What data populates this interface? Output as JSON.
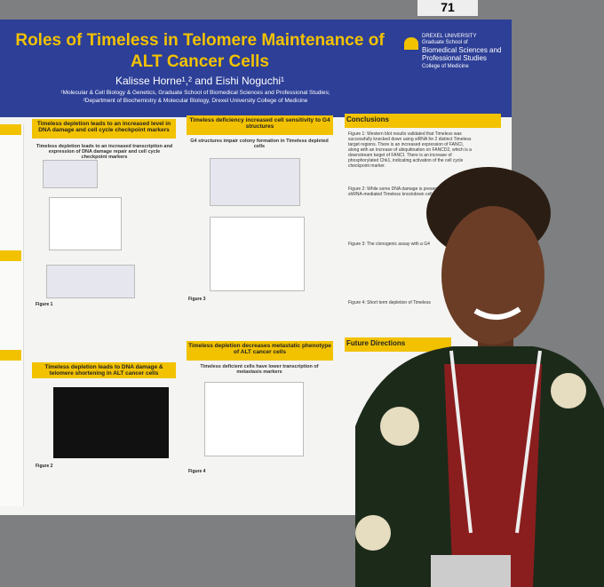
{
  "sign": "71",
  "header": {
    "title": "Roles of Timeless in Telomere Maintenance of ALT Cancer Cells",
    "authors": "Kalisse Horne¹,² and Eishi Noguchi¹",
    "affiliation_1": "¹Molecular & Cell Biology & Genetics, Graduate School of Biomedical Sciences and Professional Studies;",
    "affiliation_2": "²Department of Biochemistry & Molecular Biology, Drexel University College of Medicine",
    "logo": [
      "DREXEL UNIVERSITY",
      "Graduate School of",
      "Biomedical Sciences and Professional Studies",
      "College of Medicine"
    ]
  },
  "sections": [
    {
      "heading": "Timeless depletion leads to an increased level in DNA damage and cell cycle checkpoint markers",
      "subheading": "Timeless depletion leads to an increased transcription and expression of DNA damage repair and cell cycle checkpoint markers",
      "figure": "Figure 1"
    },
    {
      "heading": "Timeless deficiency increased cell sensitivity to G4 structures",
      "subheading": "G4 structures impair colony formation in Timeless depleted cells",
      "figure": "Figure 3"
    },
    {
      "heading": "Timeless depletion decreases metastatic phenotype of ALT cancer cells",
      "subheading": "Timeless deficient cells have lower transcription of metastasis markers",
      "figure": "Figure 4"
    },
    {
      "heading": "Timeless depletion leads to DNA damage & telomere shortening in ALT cancer cells",
      "subheading": "",
      "figure": "Figure 2"
    }
  ],
  "conclusions": {
    "heading": "Conclusions",
    "lines": [
      "Figure 1: Western blot results validated that Timeless was",
      "successfully knocked down using siRNA for 2 distinct Timeless",
      "target regions. There is an increased expression of FANCI,",
      "along with an increase of ubiquitination on FANCD2, which is a",
      "downstream target of FANCI. There is an increase of",
      "phosphorylated Chk1, indicating activation of the cell cycle",
      "checkpoint marker.",
      "Figure 2: While some DNA damage is present",
      "shRNA-mediated Timeless knockdown cells",
      "Figure 3: The clonogenic assay with a G4",
      "Figure 4: Short term depletion of Timeless"
    ]
  },
  "future": {
    "heading": "Future Directions"
  }
}
